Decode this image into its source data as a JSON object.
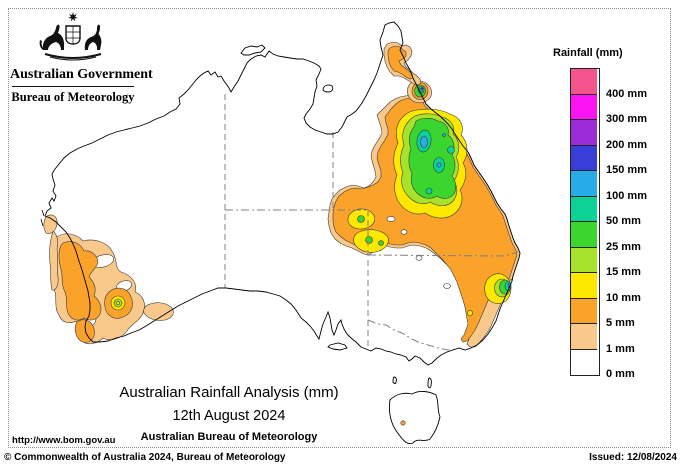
{
  "header": {
    "government": "Australian Government",
    "agency": "Bureau of Meteorology"
  },
  "legend": {
    "title": "Rainfall (mm)",
    "entries": [
      {
        "label": "400 mm",
        "color": "#F5548C"
      },
      {
        "label": "300 mm",
        "color": "#FA14F4"
      },
      {
        "label": "200 mm",
        "color": "#9B2BD9"
      },
      {
        "label": "150 mm",
        "color": "#3A3ED9"
      },
      {
        "label": "100 mm",
        "color": "#28ACE8"
      },
      {
        "label": "50 mm",
        "color": "#0BD395"
      },
      {
        "label": "25 mm",
        "color": "#3BD52F"
      },
      {
        "label": "15 mm",
        "color": "#A8E32B"
      },
      {
        "label": "10 mm",
        "color": "#FFE800"
      },
      {
        "label": "5 mm",
        "color": "#FBA22B"
      },
      {
        "label": "1 mm",
        "color": "#F9C98C"
      },
      {
        "label": "0 mm",
        "color": "#FFFFFF"
      }
    ]
  },
  "map_caption": {
    "title": "Australian Rainfall Analysis (mm)",
    "date": "12th August 2024",
    "source": "Australian Bureau of Meteorology"
  },
  "footer": {
    "url": "http://www.bom.gov.au",
    "copyright": "© Commonwealth of Australia 2024, Bureau of Meteorology",
    "issued": "Issued: 12/08/2024"
  }
}
